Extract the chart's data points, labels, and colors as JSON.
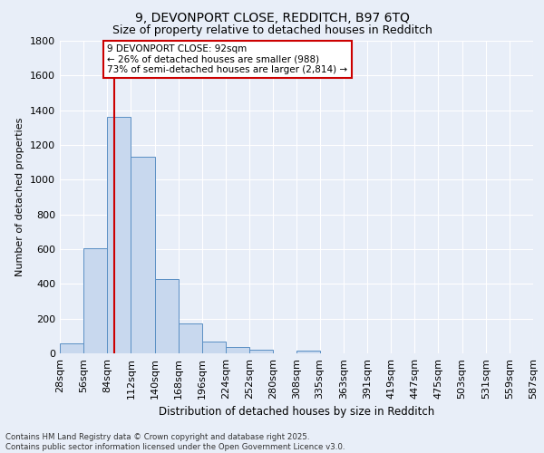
{
  "title_line1": "9, DEVONPORT CLOSE, REDDITCH, B97 6TQ",
  "title_line2": "Size of property relative to detached houses in Redditch",
  "xlabel": "Distribution of detached houses by size in Redditch",
  "ylabel": "Number of detached properties",
  "bin_edges": [
    28,
    56,
    84,
    112,
    140,
    168,
    196,
    224,
    252,
    280,
    308,
    335,
    363,
    391,
    419,
    447,
    475,
    503,
    531,
    559,
    587
  ],
  "bin_counts": [
    58,
    605,
    1360,
    1130,
    430,
    170,
    68,
    35,
    20,
    0,
    18,
    0,
    0,
    0,
    0,
    0,
    0,
    0,
    0,
    0
  ],
  "bar_facecolor": "#c8d8ee",
  "bar_edgecolor": "#5a8fc4",
  "vline_x": 92,
  "vline_color": "#cc0000",
  "annotation_text": "9 DEVONPORT CLOSE: 92sqm\n← 26% of detached houses are smaller (988)\n73% of semi-detached houses are larger (2,814) →",
  "annotation_box_edgecolor": "#cc0000",
  "annotation_box_facecolor": "#ffffff",
  "ylim": [
    0,
    1800
  ],
  "yticks": [
    0,
    200,
    400,
    600,
    800,
    1000,
    1200,
    1400,
    1600,
    1800
  ],
  "bg_color": "#e8eef8",
  "plot_bg_color": "#e8eef8",
  "footer_line1": "Contains HM Land Registry data © Crown copyright and database right 2025.",
  "footer_line2": "Contains public sector information licensed under the Open Government Licence v3.0.",
  "tick_labels": [
    "28sqm",
    "56sqm",
    "84sqm",
    "112sqm",
    "140sqm",
    "168sqm",
    "196sqm",
    "224sqm",
    "252sqm",
    "280sqm",
    "308sqm",
    "335sqm",
    "363sqm",
    "391sqm",
    "419sqm",
    "447sqm",
    "475sqm",
    "503sqm",
    "531sqm",
    "559sqm",
    "587sqm"
  ]
}
